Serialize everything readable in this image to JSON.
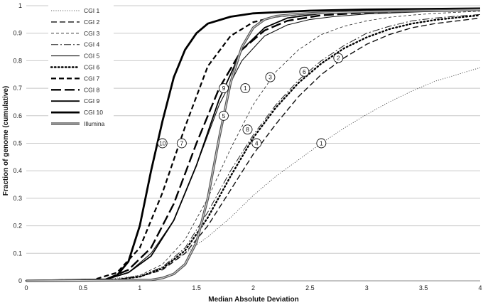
{
  "chart_data": {
    "type": "line",
    "title": "",
    "xlabel": "Median Absolute Deviation",
    "ylabel": "Fraction of genome (cumulative)",
    "xlim": [
      0,
      4
    ],
    "ylim": [
      0,
      1
    ],
    "x_ticks": [
      "0",
      "0.5",
      "1",
      "1.5",
      "2",
      "2.5",
      "3",
      "3.5",
      "4"
    ],
    "y_ticks": [
      "0",
      "0.1",
      "0.2",
      "0.3",
      "0.4",
      "0.5",
      "0.6",
      "0.7",
      "0.8",
      "0.9",
      "1"
    ],
    "grid": "horizontal",
    "legend_position": "top-left",
    "series": [
      {
        "name": "CGI 1",
        "style": "dotted-thin",
        "x": [
          0,
          0.7,
          1.0,
          1.2,
          1.4,
          1.6,
          1.8,
          2.0,
          2.2,
          2.4,
          2.6,
          2.8,
          3.0,
          3.2,
          3.4,
          3.6,
          3.8,
          4.0
        ],
        "y": [
          0,
          0.005,
          0.02,
          0.05,
          0.1,
          0.16,
          0.23,
          0.31,
          0.38,
          0.44,
          0.5,
          0.555,
          0.605,
          0.65,
          0.69,
          0.725,
          0.75,
          0.775
        ]
      },
      {
        "name": "CGI 2",
        "style": "dash-medium",
        "x": [
          0,
          0.8,
          1.0,
          1.2,
          1.4,
          1.6,
          1.8,
          2.0,
          2.2,
          2.4,
          2.6,
          2.8,
          3.0,
          3.2,
          3.4,
          3.6,
          3.8,
          4.0
        ],
        "y": [
          0,
          0.005,
          0.015,
          0.04,
          0.1,
          0.2,
          0.33,
          0.46,
          0.57,
          0.67,
          0.75,
          0.81,
          0.86,
          0.895,
          0.92,
          0.935,
          0.945,
          0.955
        ]
      },
      {
        "name": "CGI 3",
        "style": "dash-thin",
        "x": [
          0,
          0.8,
          1.0,
          1.2,
          1.4,
          1.6,
          1.8,
          2.0,
          2.2,
          2.4,
          2.6,
          2.8,
          3.0,
          3.2,
          3.4,
          3.6,
          3.8,
          4.0
        ],
        "y": [
          0,
          0.005,
          0.02,
          0.06,
          0.15,
          0.3,
          0.48,
          0.64,
          0.76,
          0.84,
          0.895,
          0.925,
          0.945,
          0.958,
          0.966,
          0.972,
          0.976,
          0.98
        ]
      },
      {
        "name": "CGI 4",
        "style": "longdash-thin",
        "x": [
          0,
          0.8,
          1.0,
          1.2,
          1.4,
          1.6,
          1.8,
          2.0,
          2.2,
          2.4,
          2.6,
          2.8,
          3.0,
          3.2,
          3.4,
          3.6,
          3.8,
          4.0
        ],
        "y": [
          0,
          0.005,
          0.015,
          0.05,
          0.12,
          0.25,
          0.4,
          0.53,
          0.64,
          0.73,
          0.8,
          0.855,
          0.9,
          0.925,
          0.945,
          0.955,
          0.962,
          0.968
        ]
      },
      {
        "name": "CGI 5",
        "style": "solid-thin",
        "x": [
          0,
          0.7,
          0.9,
          1.1,
          1.3,
          1.5,
          1.7,
          1.9,
          2.1,
          2.3,
          2.5,
          2.7,
          3.0,
          3.5,
          4.0
        ],
        "y": [
          0,
          0.005,
          0.03,
          0.1,
          0.22,
          0.42,
          0.64,
          0.8,
          0.89,
          0.93,
          0.95,
          0.96,
          0.97,
          0.978,
          0.982
        ]
      },
      {
        "name": "CGI 6",
        "style": "dotted-bold",
        "x": [
          0,
          0.8,
          1.0,
          1.2,
          1.4,
          1.6,
          1.8,
          2.0,
          2.2,
          2.4,
          2.6,
          2.8,
          3.0,
          3.2,
          3.4,
          3.6,
          3.8,
          4.0
        ],
        "y": [
          0,
          0.005,
          0.015,
          0.045,
          0.11,
          0.23,
          0.38,
          0.52,
          0.63,
          0.72,
          0.79,
          0.845,
          0.885,
          0.915,
          0.935,
          0.948,
          0.957,
          0.965
        ]
      },
      {
        "name": "CGI 7",
        "style": "dash-bold",
        "x": [
          0,
          0.6,
          0.8,
          1.0,
          1.2,
          1.4,
          1.6,
          1.8,
          2.0,
          2.2,
          2.5,
          3.0,
          3.5,
          4.0
        ],
        "y": [
          0,
          0.005,
          0.03,
          0.12,
          0.32,
          0.56,
          0.78,
          0.89,
          0.94,
          0.96,
          0.972,
          0.98,
          0.985,
          0.988
        ]
      },
      {
        "name": "CGI 8",
        "style": "longdash-bold",
        "x": [
          0,
          0.7,
          0.9,
          1.1,
          1.3,
          1.5,
          1.7,
          1.9,
          2.1,
          2.3,
          2.6,
          3.0,
          3.5,
          4.0
        ],
        "y": [
          0,
          0.005,
          0.04,
          0.12,
          0.28,
          0.5,
          0.7,
          0.84,
          0.91,
          0.945,
          0.965,
          0.975,
          0.981,
          0.985
        ]
      },
      {
        "name": "CGI 9",
        "style": "solid-medium",
        "x": [
          0,
          0.7,
          0.9,
          1.1,
          1.3,
          1.5,
          1.7,
          1.9,
          2.1,
          2.3,
          2.6,
          3.0,
          3.5,
          4.0
        ],
        "y": [
          0,
          0.005,
          0.03,
          0.09,
          0.22,
          0.42,
          0.66,
          0.84,
          0.92,
          0.955,
          0.972,
          0.98,
          0.985,
          0.988
        ]
      },
      {
        "name": "CGI 10",
        "style": "solid-bold",
        "x": [
          0,
          0.7,
          0.8,
          0.9,
          1.0,
          1.1,
          1.2,
          1.3,
          1.4,
          1.5,
          1.6,
          1.8,
          2.0,
          2.5,
          3.0,
          4.0
        ],
        "y": [
          0,
          0.005,
          0.02,
          0.07,
          0.2,
          0.4,
          0.58,
          0.74,
          0.84,
          0.9,
          0.935,
          0.96,
          0.972,
          0.982,
          0.986,
          0.99
        ]
      },
      {
        "name": "Illumina",
        "style": "double-gray",
        "x": [
          0,
          1.1,
          1.2,
          1.3,
          1.4,
          1.5,
          1.6,
          1.7,
          1.8,
          1.9,
          2.0,
          2.1,
          2.2,
          2.4,
          2.6,
          3.0,
          3.5,
          4.0
        ],
        "y": [
          0,
          0.003,
          0.01,
          0.025,
          0.06,
          0.14,
          0.3,
          0.52,
          0.72,
          0.85,
          0.92,
          0.95,
          0.962,
          0.97,
          0.974,
          0.978,
          0.982,
          0.985
        ]
      }
    ],
    "annotations": [
      {
        "label": "1",
        "x": 2.6,
        "y": 0.5
      },
      {
        "label": "2",
        "x": 2.75,
        "y": 0.81
      },
      {
        "label": "3",
        "x": 2.15,
        "y": 0.74
      },
      {
        "label": "4",
        "x": 2.03,
        "y": 0.5
      },
      {
        "label": "5",
        "x": 1.74,
        "y": 0.6
      },
      {
        "label": "6",
        "x": 2.45,
        "y": 0.76
      },
      {
        "label": "7",
        "x": 1.37,
        "y": 0.5
      },
      {
        "label": "8",
        "x": 1.95,
        "y": 0.55
      },
      {
        "label": "9",
        "x": 1.74,
        "y": 0.7
      },
      {
        "label": "10",
        "x": 1.2,
        "y": 0.5
      },
      {
        "label": "1",
        "x": 1.93,
        "y": 0.7
      }
    ]
  }
}
